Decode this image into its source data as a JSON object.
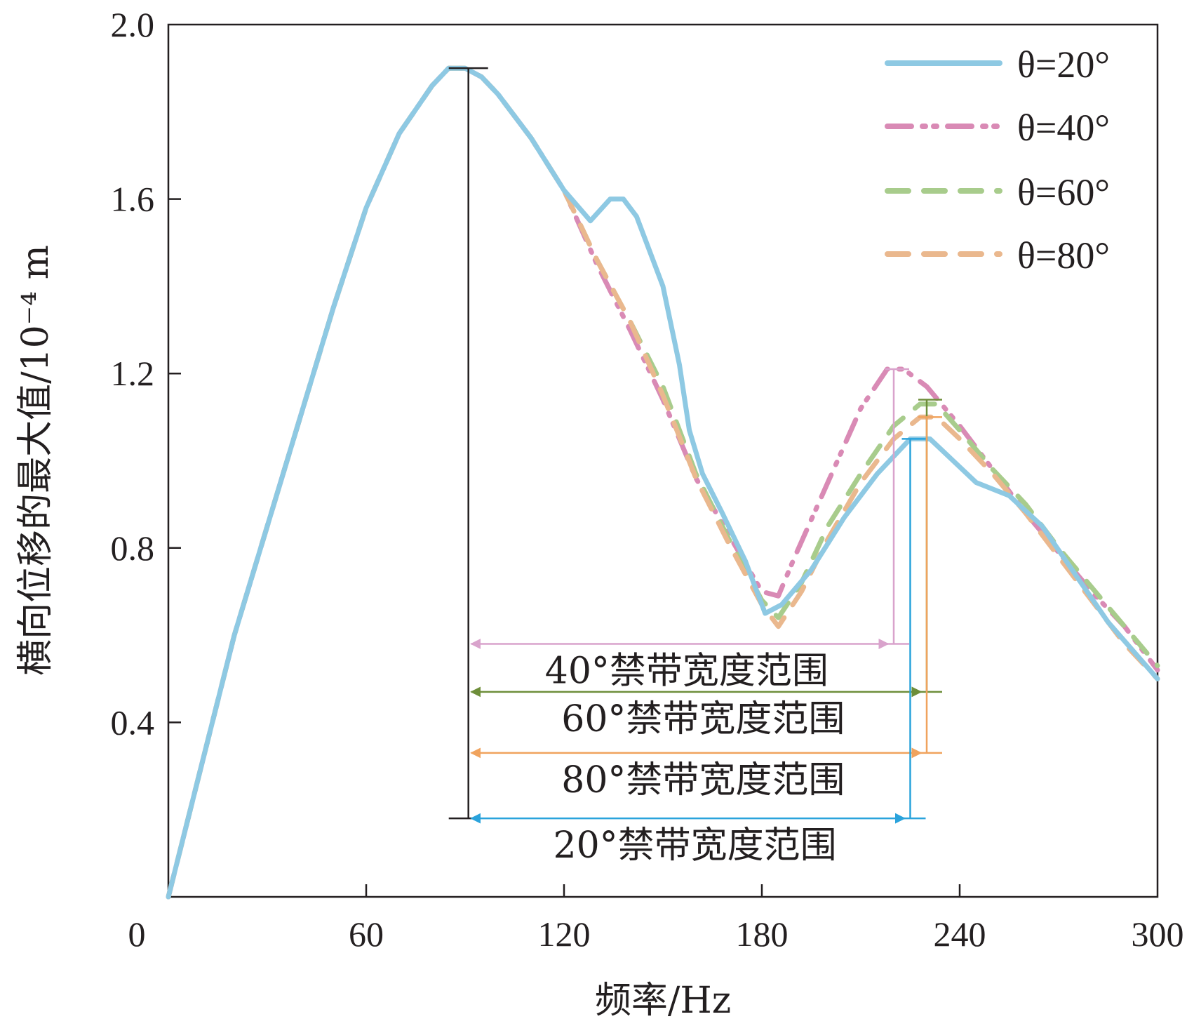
{
  "chart_data": {
    "type": "line",
    "xlabel": "频率/Hz",
    "ylabel": "横向位移的最大值/10⁻⁴ m",
    "xlim": [
      0,
      300
    ],
    "ylim": [
      0,
      2.0
    ],
    "x_ticks": [
      "0",
      "60",
      "120",
      "180",
      "240",
      "300"
    ],
    "y_ticks": [
      "0.4",
      "0.8",
      "1.2",
      "1.6",
      "2.0"
    ],
    "legend_position": "top-right",
    "series": [
      {
        "name": "θ=20°",
        "color": "#8ec9e3",
        "dash": "solid",
        "points": [
          [
            0,
            0
          ],
          [
            10,
            0.3
          ],
          [
            20,
            0.6
          ],
          [
            30,
            0.85
          ],
          [
            40,
            1.1
          ],
          [
            50,
            1.35
          ],
          [
            60,
            1.58
          ],
          [
            70,
            1.75
          ],
          [
            80,
            1.86
          ],
          [
            85,
            1.9
          ],
          [
            90,
            1.9
          ],
          [
            95,
            1.88
          ],
          [
            100,
            1.84
          ],
          [
            110,
            1.74
          ],
          [
            120,
            1.62
          ],
          [
            128,
            1.55
          ],
          [
            134,
            1.6
          ],
          [
            138,
            1.6
          ],
          [
            142,
            1.56
          ],
          [
            150,
            1.4
          ],
          [
            155,
            1.22
          ],
          [
            158,
            1.07
          ],
          [
            162,
            0.97
          ],
          [
            168,
            0.88
          ],
          [
            175,
            0.77
          ],
          [
            181,
            0.65
          ],
          [
            186,
            0.67
          ],
          [
            195,
            0.75
          ],
          [
            205,
            0.87
          ],
          [
            215,
            0.97
          ],
          [
            225,
            1.05
          ],
          [
            231,
            1.05
          ],
          [
            238,
            1.0
          ],
          [
            245,
            0.95
          ],
          [
            255,
            0.92
          ],
          [
            265,
            0.85
          ],
          [
            275,
            0.74
          ],
          [
            285,
            0.63
          ],
          [
            300,
            0.5
          ]
        ]
      },
      {
        "name": "θ=40°",
        "color": "#d98ab5",
        "dash": "dashdot",
        "points": [
          [
            0,
            0
          ],
          [
            10,
            0.3
          ],
          [
            20,
            0.6
          ],
          [
            30,
            0.85
          ],
          [
            40,
            1.1
          ],
          [
            50,
            1.35
          ],
          [
            60,
            1.58
          ],
          [
            70,
            1.75
          ],
          [
            80,
            1.86
          ],
          [
            85,
            1.9
          ],
          [
            90,
            1.9
          ],
          [
            95,
            1.88
          ],
          [
            100,
            1.84
          ],
          [
            110,
            1.74
          ],
          [
            120,
            1.62
          ],
          [
            130,
            1.45
          ],
          [
            140,
            1.3
          ],
          [
            150,
            1.14
          ],
          [
            160,
            0.96
          ],
          [
            170,
            0.83
          ],
          [
            180,
            0.7
          ],
          [
            185,
            0.69
          ],
          [
            190,
            0.78
          ],
          [
            200,
            0.95
          ],
          [
            210,
            1.12
          ],
          [
            218,
            1.21
          ],
          [
            223,
            1.21
          ],
          [
            230,
            1.17
          ],
          [
            240,
            1.08
          ],
          [
            250,
            0.98
          ],
          [
            260,
            0.88
          ],
          [
            270,
            0.79
          ],
          [
            280,
            0.7
          ],
          [
            290,
            0.62
          ],
          [
            300,
            0.52
          ]
        ]
      },
      {
        "name": "θ=60°",
        "color": "#a8cc8c",
        "dash": "dashed",
        "points": [
          [
            0,
            0
          ],
          [
            10,
            0.3
          ],
          [
            20,
            0.6
          ],
          [
            30,
            0.85
          ],
          [
            40,
            1.1
          ],
          [
            50,
            1.35
          ],
          [
            60,
            1.58
          ],
          [
            70,
            1.75
          ],
          [
            80,
            1.86
          ],
          [
            85,
            1.9
          ],
          [
            90,
            1.9
          ],
          [
            95,
            1.88
          ],
          [
            100,
            1.84
          ],
          [
            110,
            1.74
          ],
          [
            120,
            1.62
          ],
          [
            130,
            1.46
          ],
          [
            140,
            1.32
          ],
          [
            150,
            1.17
          ],
          [
            160,
            0.97
          ],
          [
            170,
            0.82
          ],
          [
            180,
            0.68
          ],
          [
            185,
            0.64
          ],
          [
            192,
            0.72
          ],
          [
            200,
            0.85
          ],
          [
            210,
            0.97
          ],
          [
            220,
            1.08
          ],
          [
            228,
            1.13
          ],
          [
            233,
            1.13
          ],
          [
            240,
            1.07
          ],
          [
            250,
            0.98
          ],
          [
            260,
            0.9
          ],
          [
            270,
            0.8
          ],
          [
            280,
            0.71
          ],
          [
            290,
            0.62
          ],
          [
            300,
            0.53
          ]
        ]
      },
      {
        "name": "θ=80°",
        "color": "#eab88e",
        "dash": "dashed",
        "points": [
          [
            0,
            0
          ],
          [
            10,
            0.3
          ],
          [
            20,
            0.6
          ],
          [
            30,
            0.85
          ],
          [
            40,
            1.1
          ],
          [
            50,
            1.35
          ],
          [
            60,
            1.58
          ],
          [
            70,
            1.75
          ],
          [
            80,
            1.86
          ],
          [
            85,
            1.9
          ],
          [
            90,
            1.9
          ],
          [
            95,
            1.88
          ],
          [
            100,
            1.84
          ],
          [
            110,
            1.74
          ],
          [
            120,
            1.62
          ],
          [
            130,
            1.46
          ],
          [
            140,
            1.32
          ],
          [
            150,
            1.15
          ],
          [
            160,
            0.96
          ],
          [
            170,
            0.81
          ],
          [
            180,
            0.67
          ],
          [
            185,
            0.62
          ],
          [
            192,
            0.7
          ],
          [
            200,
            0.82
          ],
          [
            210,
            0.95
          ],
          [
            220,
            1.05
          ],
          [
            228,
            1.1
          ],
          [
            233,
            1.1
          ],
          [
            240,
            1.05
          ],
          [
            250,
            0.97
          ],
          [
            260,
            0.88
          ],
          [
            270,
            0.78
          ],
          [
            280,
            0.68
          ],
          [
            290,
            0.58
          ],
          [
            300,
            0.5
          ]
        ]
      }
    ],
    "annotations": {
      "peak_marker": {
        "x": 91,
        "y_top": 1.9,
        "y_bottom": 0.18,
        "color": "#231f20"
      },
      "band_markers": [
        {
          "label": "40°禁带宽度范围",
          "color": "#d9a3cc",
          "x_start": 91,
          "x_end": 220,
          "x_line": 220,
          "y_top": 1.21,
          "arrow_y": 0.58
        },
        {
          "label": "60°禁带宽度范围",
          "color": "#6e8e3a",
          "x_start": 91,
          "x_end": 230,
          "x_line": 230,
          "y_top": 1.14,
          "arrow_y": 0.47
        },
        {
          "label": "80°禁带宽度范围",
          "color": "#f0a35e",
          "x_start": 91,
          "x_end": 230,
          "x_line": 230,
          "y_top": 1.1,
          "arrow_y": 0.33
        },
        {
          "label": "20°禁带宽度范围",
          "color": "#2aa3dc",
          "x_start": 91,
          "x_end": 225,
          "x_line": 225,
          "y_top": 1.05,
          "arrow_y": 0.18
        }
      ]
    }
  }
}
